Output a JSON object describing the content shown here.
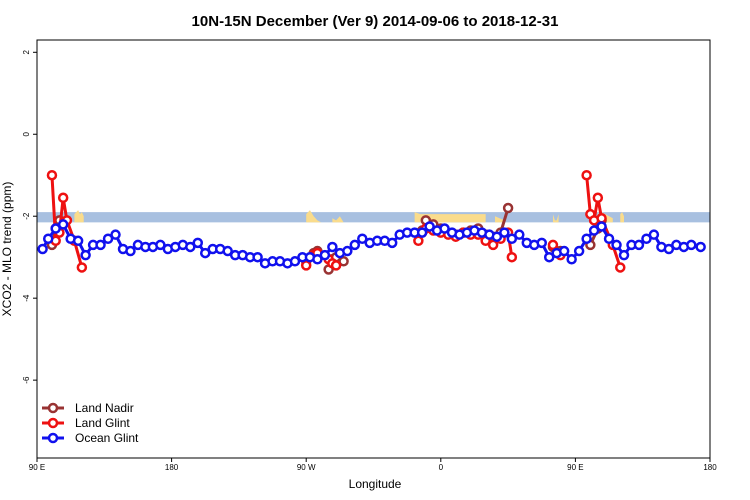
{
  "chart_data": {
    "type": "line",
    "title": "10N-15N December (Ver 9)   2014-09-06 to 2018-12-31",
    "xlabel": "Longitude",
    "ylabel": "XCO2 - MLO trend (ppm)",
    "xlim": [
      0,
      360
    ],
    "ylim": [
      -7.9,
      2.3
    ],
    "xticks": [
      {
        "value": 0,
        "label": "90 E"
      },
      {
        "value": 72,
        "label": "180"
      },
      {
        "value": 144,
        "label": "90 W"
      },
      {
        "value": 216,
        "label": "0"
      },
      {
        "value": 288,
        "label": "90 E"
      },
      {
        "value": 360,
        "label": "180"
      }
    ],
    "yticks": [
      {
        "value": 2,
        "label": "2"
      },
      {
        "value": 0,
        "label": "0"
      },
      {
        "value": -2,
        "label": "-2"
      },
      {
        "value": -4,
        "label": "-4"
      },
      {
        "value": -6,
        "label": "-6"
      }
    ],
    "band": {
      "y0": -2.15,
      "y1": -1.9,
      "color": "#a8c0e0",
      "land_color": "#fadc8c"
    },
    "land_segments": [
      {
        "x": [
          20,
          21,
          22,
          23,
          24,
          25
        ],
        "top": [
          -1.95,
          -1.9,
          -1.85,
          -1.95,
          -1.9,
          -2.0
        ]
      },
      {
        "x": [
          144,
          146,
          148,
          150,
          152
        ],
        "top": [
          -1.95,
          -1.85,
          -2.0,
          -2.1,
          -2.15
        ]
      },
      {
        "x": [
          158,
          160,
          162,
          164
        ],
        "top": [
          -2.05,
          -2.1,
          -2.0,
          -2.15
        ]
      },
      {
        "x": [
          202,
          205,
          210,
          215,
          220,
          225,
          230,
          235,
          240
        ],
        "top": [
          -1.9,
          -1.95,
          -1.95,
          -1.95,
          -1.95,
          -1.95,
          -1.95,
          -1.95,
          -1.95
        ]
      },
      {
        "x": [
          245,
          250
        ],
        "top": [
          -2.0,
          -2.1
        ]
      },
      {
        "x": [
          276,
          277,
          278,
          279
        ],
        "top": [
          -1.95,
          -2.1,
          -2.1,
          -1.95
        ]
      },
      {
        "x": [
          300,
          302,
          304,
          306,
          308
        ],
        "top": [
          -1.95,
          -1.9,
          -1.95,
          -2.0,
          -2.05
        ]
      },
      {
        "x": [
          312,
          313,
          314
        ],
        "top": [
          -1.95,
          -1.9,
          -2.0
        ]
      }
    ],
    "legend_position": "bottom-left",
    "series": [
      {
        "name": "Land Nadir",
        "color": "#993333",
        "segments": [
          {
            "x": [
              8,
              10,
              12
            ],
            "y": [
              -2.7,
              -2.3,
              -2.1
            ]
          },
          {
            "x": [
              144,
              148,
              150
            ],
            "y": [
              -3.1,
              -2.9,
              -2.85
            ]
          },
          {
            "x": [
              156,
              158,
              160,
              164
            ],
            "y": [
              -3.3,
              -3.05,
              -3.0,
              -3.1
            ]
          },
          {
            "x": [
              206,
              208,
              212,
              216
            ],
            "y": [
              -2.35,
              -2.1,
              -2.2,
              -2.3
            ]
          },
          {
            "x": [
              224,
              228,
              232,
              236,
              240,
              244,
              248,
              252
            ],
            "y": [
              -2.45,
              -2.4,
              -2.35,
              -2.3,
              -2.45,
              -2.5,
              -2.4,
              -1.8
            ]
          },
          {
            "x": [
              276,
              280
            ],
            "y": [
              -2.75,
              -2.85
            ]
          },
          {
            "x": [
              296,
              300,
              302
            ],
            "y": [
              -2.7,
              -2.3,
              -2.1
            ]
          }
        ]
      },
      {
        "name": "Land Glint",
        "color": "#ee1111",
        "segments": [
          {
            "x": [
              8,
              10,
              12,
              14,
              16,
              20,
              24
            ],
            "y": [
              -1.0,
              -2.6,
              -2.4,
              -1.55,
              -2.1,
              -2.6,
              -3.25
            ]
          },
          {
            "x": [
              144,
              148,
              150
            ],
            "y": [
              -3.2,
              -2.95,
              -2.9
            ]
          },
          {
            "x": [
              156,
              158,
              160
            ],
            "y": [
              -3.05,
              -3.15,
              -3.2
            ]
          },
          {
            "x": [
              204,
              206,
              208,
              212
            ],
            "y": [
              -2.6,
              -2.4,
              -2.3,
              -2.35
            ]
          },
          {
            "x": [
              216,
              220,
              224,
              228,
              232,
              236,
              240,
              244,
              248,
              252,
              254
            ],
            "y": [
              -2.4,
              -2.45,
              -2.5,
              -2.4,
              -2.45,
              -2.45,
              -2.6,
              -2.7,
              -2.55,
              -2.4,
              -3.0
            ]
          },
          {
            "x": [
              276,
              280
            ],
            "y": [
              -2.7,
              -2.95
            ]
          },
          {
            "x": [
              294,
              296,
              298,
              300,
              302,
              308,
              312
            ],
            "y": [
              -1.0,
              -1.95,
              -2.1,
              -1.55,
              -2.05,
              -2.7,
              -3.25
            ]
          }
        ]
      },
      {
        "name": "Ocean Glint",
        "color": "#1111ee",
        "segments": [
          {
            "x": [
              3,
              6,
              10,
              14,
              18,
              22,
              26,
              30,
              34,
              38,
              42,
              46,
              50,
              54,
              58,
              62,
              66,
              70,
              74,
              78,
              82,
              86,
              90,
              94,
              98,
              102,
              106,
              110,
              114,
              118,
              122,
              126,
              130,
              134,
              138,
              142,
              146,
              150,
              154,
              158,
              162,
              166,
              170,
              174,
              178,
              182,
              186,
              190,
              194,
              198,
              202,
              206,
              210,
              214,
              218,
              222,
              226,
              230,
              234,
              238,
              242,
              246,
              250,
              254,
              258,
              262,
              266,
              270,
              274,
              278,
              282,
              286,
              290,
              294,
              298,
              302,
              306,
              310,
              314,
              318,
              322,
              326,
              330,
              334,
              338,
              342,
              346,
              350,
              355
            ],
            "y": [
              -2.8,
              -2.55,
              -2.3,
              -2.2,
              -2.55,
              -2.6,
              -2.95,
              -2.7,
              -2.7,
              -2.55,
              -2.45,
              -2.8,
              -2.85,
              -2.7,
              -2.75,
              -2.75,
              -2.7,
              -2.8,
              -2.75,
              -2.7,
              -2.75,
              -2.65,
              -2.9,
              -2.8,
              -2.8,
              -2.85,
              -2.95,
              -2.95,
              -3.0,
              -3.0,
              -3.15,
              -3.1,
              -3.1,
              -3.15,
              -3.1,
              -3.0,
              -3.0,
              -3.05,
              -2.95,
              -2.75,
              -2.9,
              -2.85,
              -2.7,
              -2.55,
              -2.65,
              -2.6,
              -2.6,
              -2.65,
              -2.45,
              -2.4,
              -2.4,
              -2.4,
              -2.25,
              -2.35,
              -2.3,
              -2.4,
              -2.45,
              -2.4,
              -2.35,
              -2.4,
              -2.45,
              -2.5,
              -2.4,
              -2.55,
              -2.45,
              -2.65,
              -2.7,
              -2.65,
              -3.0,
              -2.9,
              -2.85,
              -3.05,
              -2.85,
              -2.55,
              -2.35,
              -2.25,
              -2.55,
              -2.7,
              -2.95,
              -2.7,
              -2.7,
              -2.55,
              -2.45,
              -2.75,
              -2.8,
              -2.7,
              -2.75,
              -2.7,
              -2.75
            ]
          }
        ]
      }
    ]
  }
}
